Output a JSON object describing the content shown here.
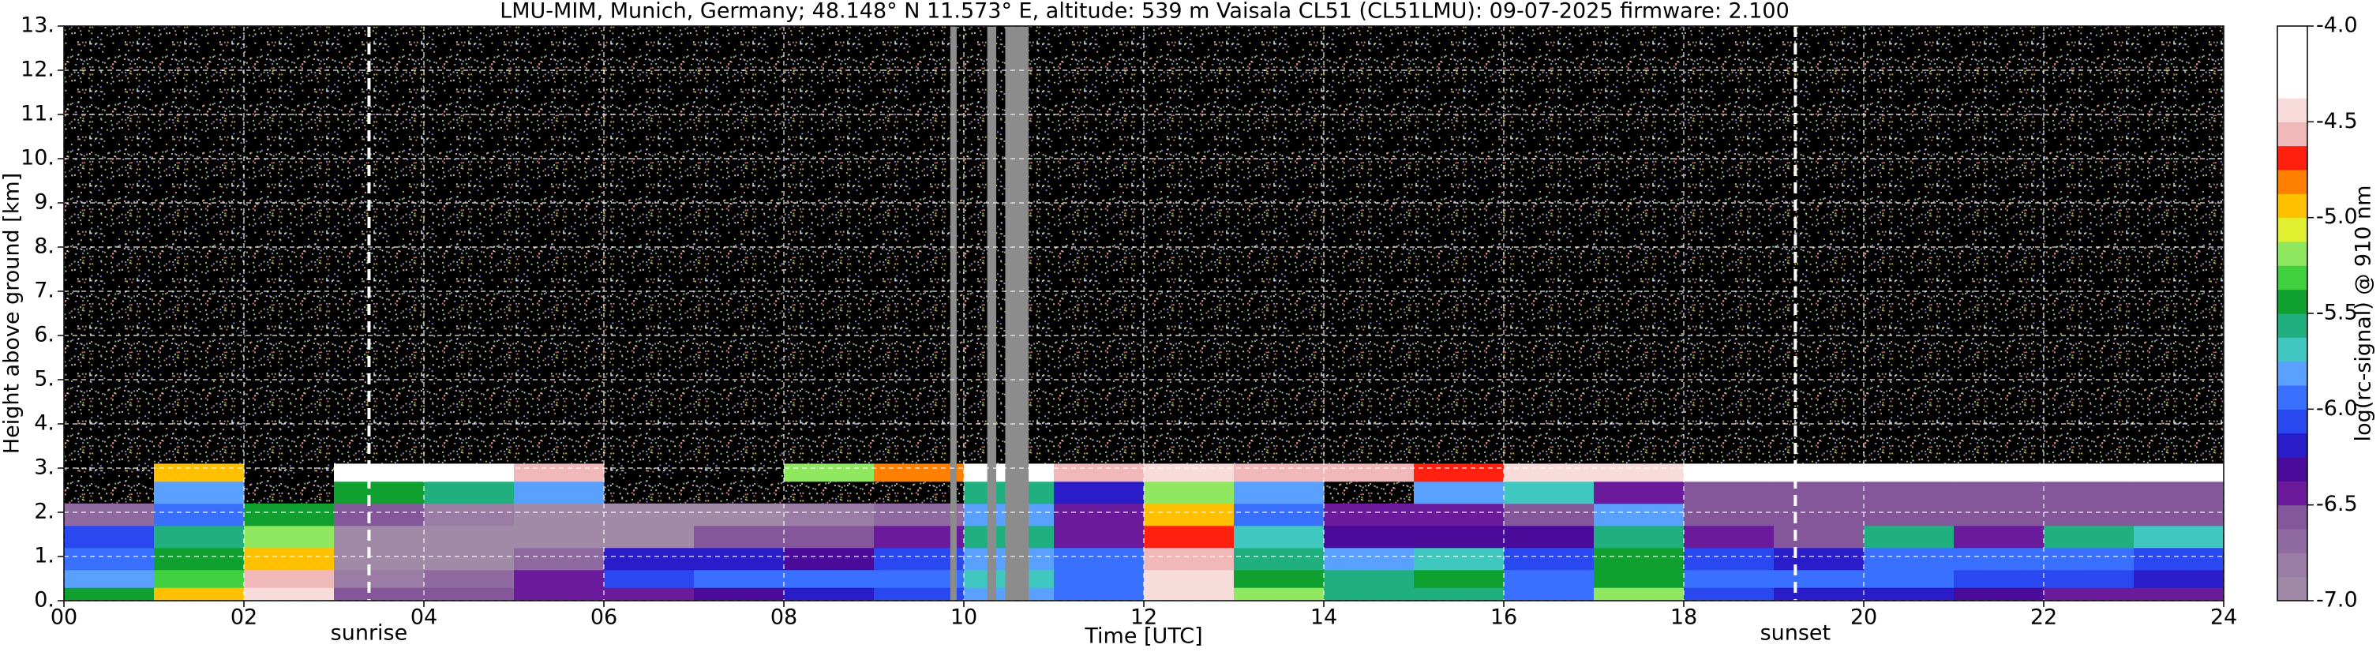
{
  "chart_data": {
    "type": "heatmap",
    "title": "LMU-MIM, Munich, Germany; 48.148° N 11.573° E, altitude: 539 m    Vaisala CL51 (CL51LMU): 09-07-2025    firmware: 2.100",
    "x_label": "Time [UTC]",
    "y_label": "Height above ground [km]",
    "colorbar_label": "log(rc-signal) @ 910 nm",
    "xlim": [
      0,
      24
    ],
    "ylim": [
      0,
      13
    ],
    "xticks": [
      {
        "value": 0,
        "label": "00"
      },
      {
        "value": 2,
        "label": "02"
      },
      {
        "value": 4,
        "label": "04"
      },
      {
        "value": 6,
        "label": "06"
      },
      {
        "value": 8,
        "label": "08"
      },
      {
        "value": 10,
        "label": "10"
      },
      {
        "value": 12,
        "label": "12"
      },
      {
        "value": 14,
        "label": "14"
      },
      {
        "value": 16,
        "label": "16"
      },
      {
        "value": 18,
        "label": "18"
      },
      {
        "value": 20,
        "label": "20"
      },
      {
        "value": 22,
        "label": "22"
      },
      {
        "value": 24,
        "label": "24"
      }
    ],
    "yticks": [
      {
        "value": 0,
        "label": "0."
      },
      {
        "value": 1,
        "label": "1."
      },
      {
        "value": 2,
        "label": "2."
      },
      {
        "value": 3,
        "label": "3."
      },
      {
        "value": 4,
        "label": "4."
      },
      {
        "value": 5,
        "label": "5."
      },
      {
        "value": 6,
        "label": "6."
      },
      {
        "value": 7,
        "label": "7."
      },
      {
        "value": 8,
        "label": "8."
      },
      {
        "value": 9,
        "label": "9."
      },
      {
        "value": 10,
        "label": "10."
      },
      {
        "value": 11,
        "label": "11."
      },
      {
        "value": 12,
        "label": "12."
      },
      {
        "value": 13,
        "label": "13."
      }
    ],
    "grid": true,
    "clim": [
      -7,
      -4
    ],
    "cticks": [
      {
        "value": -4,
        "label": "-4.0"
      },
      -4.5,
      {
        "value": -5,
        "label": "-5.0"
      },
      -5.5,
      {
        "value": -6,
        "label": "-6.0"
      },
      -6.5,
      {
        "value": -7,
        "label": "-7.0"
      }
    ],
    "colormap": [
      "#a08aa8",
      "#9a7ca4",
      "#8e6aa0",
      "#84579a",
      "#6a1a9a",
      "#4a0a9a",
      "#2a1cc8",
      "#2a48f0",
      "#3a70ff",
      "#5aa0ff",
      "#40c8c0",
      "#20b080",
      "#10a030",
      "#40d040",
      "#90e860",
      "#e0f030",
      "#ffc000",
      "#ff8000",
      "#ff2010",
      "#f0b8b8",
      "#f8dcdc",
      "#ffffff",
      "#ffffff",
      "#ffffff"
    ],
    "x_edges": [
      0,
      1,
      2,
      3,
      4,
      5,
      6,
      7,
      8,
      9,
      10,
      11,
      12,
      13,
      14,
      15,
      16,
      17,
      18,
      19,
      20,
      21,
      22,
      23,
      24
    ],
    "y_edges": [
      0,
      0.3,
      0.7,
      1.2,
      1.7,
      2.2,
      2.7,
      3.1,
      13
    ],
    "z": [
      [
        -5.5,
        -5.0,
        -4.4,
        -6.6,
        -6.6,
        -6.5,
        -6.4,
        -6.3,
        -6.2,
        -6.1,
        -5.8,
        -6.0,
        -4.4,
        -5.2,
        -5.6,
        -5.6,
        -6.0,
        -5.2,
        -6.1,
        -6.2,
        -6.2,
        -6.3,
        -6.4,
        -6.4
      ],
      [
        -5.8,
        -5.3,
        -4.6,
        -6.8,
        -6.7,
        -6.4,
        -6.1,
        -6.0,
        -6.0,
        -6.0,
        -5.7,
        -6.0,
        -4.5,
        -5.4,
        -5.6,
        -5.5,
        -6.0,
        -5.4,
        -6.0,
        -6.0,
        -6.0,
        -6.1,
        -6.1,
        -6.2
      ],
      [
        -6.0,
        -5.4,
        -5.0,
        -6.9,
        -6.9,
        -6.7,
        -6.2,
        -6.2,
        -6.3,
        -6.1,
        -5.8,
        -6.0,
        -4.6,
        -5.6,
        -5.8,
        -5.7,
        -6.1,
        -5.5,
        -6.1,
        -6.2,
        -6.0,
        -6.0,
        -6.0,
        -6.1
      ],
      [
        -6.1,
        -5.6,
        -5.2,
        -6.9,
        -7.0,
        -6.9,
        -6.9,
        -6.6,
        -6.6,
        -6.5,
        -5.6,
        -6.4,
        -4.7,
        -5.7,
        -6.3,
        -6.3,
        -6.3,
        -5.6,
        -6.5,
        -6.6,
        -5.6,
        -6.4,
        -5.6,
        -5.7
      ],
      [
        -6.7,
        -5.9,
        -5.5,
        -6.6,
        -6.8,
        -6.9,
        -6.9,
        -6.9,
        -6.8,
        -6.7,
        -5.8,
        -6.5,
        -5.0,
        -5.9,
        -6.5,
        -6.5,
        -6.6,
        -5.8,
        -6.6,
        -6.6,
        -6.6,
        -6.6,
        -6.6,
        -6.6
      ],
      [
        null,
        -5.8,
        null,
        -5.4,
        -5.6,
        -5.8,
        null,
        null,
        null,
        null,
        -5.6,
        -6.2,
        -5.2,
        -5.8,
        null,
        -5.8,
        -5.7,
        -6.5,
        -6.6,
        -6.6,
        -6.6,
        -6.6,
        -6.6,
        -6.6
      ],
      [
        null,
        -5.0,
        null,
        -4.3,
        -4.3,
        -4.6,
        null,
        null,
        -5.2,
        -4.8,
        -4.3,
        -4.6,
        -4.5,
        -4.6,
        -4.6,
        -4.7,
        -4.5,
        -4.4,
        -4.2,
        -4.2,
        -4.3,
        -4.3,
        -4.3,
        -4.3
      ],
      [
        null,
        null,
        null,
        null,
        null,
        null,
        null,
        null,
        null,
        null,
        null,
        null,
        null,
        null,
        null,
        null,
        null,
        null,
        null,
        null,
        null,
        null,
        null,
        null
      ]
    ],
    "gaps": [
      [
        9.85,
        9.92
      ],
      [
        10.26,
        10.36
      ],
      [
        10.46,
        10.72
      ]
    ],
    "gap_color": "#8c8c8c",
    "annotations": [
      {
        "label": "sunrise",
        "x": 3.39
      },
      {
        "label": "sunset",
        "x": 19.24
      }
    ]
  }
}
